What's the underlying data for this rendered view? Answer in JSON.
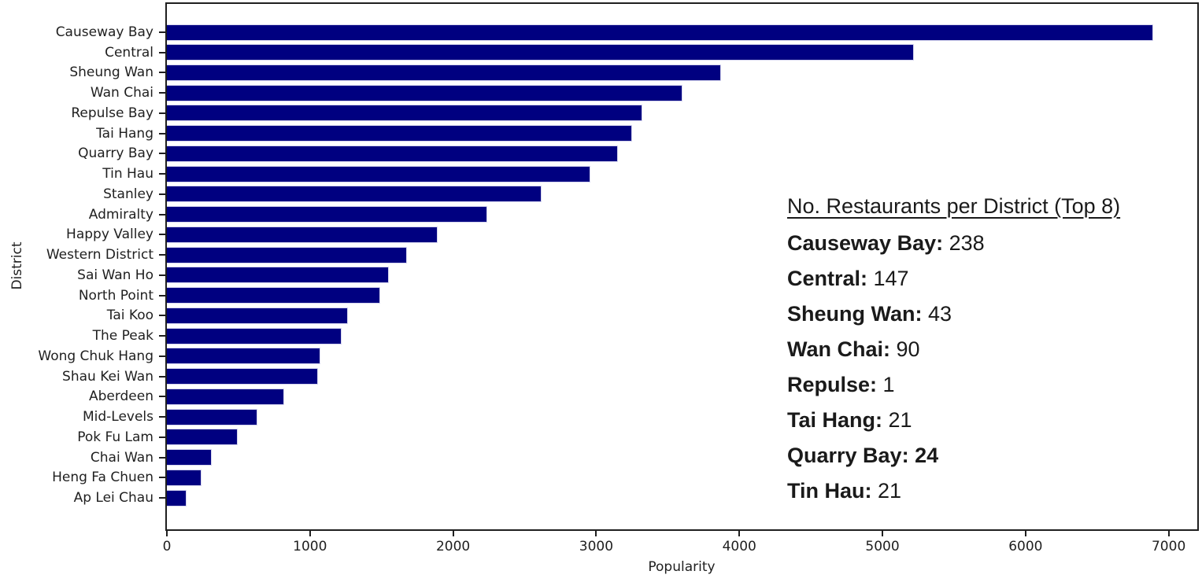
{
  "chart_data": {
    "type": "bar",
    "orientation": "horizontal",
    "title": "",
    "xlabel": "Popularity",
    "ylabel": "District",
    "xlim": [
      0,
      7200
    ],
    "x_ticks": [
      0,
      1000,
      2000,
      3000,
      4000,
      5000,
      6000,
      7000
    ],
    "grid": false,
    "legend": null,
    "bar_color": "#000080",
    "bar_edge_color": "#d4d4ee",
    "axis_color": "#1f1f1f",
    "categories": [
      "Causeway Bay",
      "Central",
      "Sheung Wan",
      "Wan Chai",
      "Repulse Bay",
      "Tai Hang",
      "Quarry Bay",
      "Tin Hau",
      "Stanley",
      "Admiralty",
      "Happy Valley",
      "Western District",
      "Sai Wan Ho",
      "North Point",
      "Tai Koo",
      "The Peak",
      "Wong Chuk Hang",
      "Shau Kei Wan",
      "Aberdeen",
      "Mid-Levels",
      "Pok Fu Lam",
      "Chai Wan",
      "Heng Fa Chuen",
      "Ap Lei Chau"
    ],
    "values": [
      6890,
      5220,
      3870,
      3600,
      3320,
      3250,
      3150,
      2960,
      2620,
      2240,
      1890,
      1680,
      1550,
      1490,
      1265,
      1220,
      1070,
      1055,
      820,
      630,
      495,
      315,
      240,
      140
    ]
  },
  "annotation": {
    "title": "No. Restaurants per District (Top 8)",
    "text_color": "#1a1a1a",
    "entries": [
      {
        "label": "Causeway Bay:",
        "value": "238",
        "value_bold": false
      },
      {
        "label": "Central:",
        "value": "147",
        "value_bold": false
      },
      {
        "label": "Sheung Wan:",
        "value": "43",
        "value_bold": false
      },
      {
        "label": "Wan Chai:",
        "value": "90",
        "value_bold": false
      },
      {
        "label": "Repulse:",
        "value": "1",
        "value_bold": false
      },
      {
        "label": "Tai Hang:",
        "value": "21",
        "value_bold": false
      },
      {
        "label": "Quarry Bay:",
        "value": "24",
        "value_bold": true
      },
      {
        "label": "Tin Hau:",
        "value": "21",
        "value_bold": false
      }
    ]
  }
}
